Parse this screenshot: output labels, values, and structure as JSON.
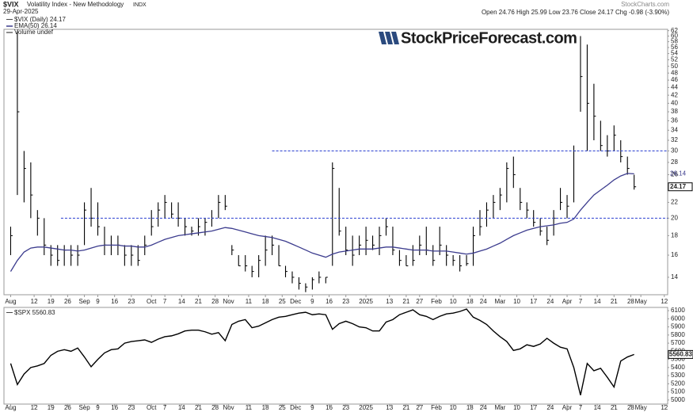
{
  "chart_data": [
    {
      "type": "ohlc",
      "title": "$VIX",
      "subtitle": "Volatility Index - New Methodology",
      "exchange": "INDX",
      "date": "29-Apr-2025",
      "quote": "Open 24.76  High 25.99  Low 23.76  Close 24.17  Chg -0.98 (-3.90%)",
      "source": "StockCharts.com",
      "watermark": "StockPriceForecast.com",
      "legend": [
        "$VIX (Daily) 24.17",
        "EMA(50) 26.14",
        "Volume undef"
      ],
      "color": "#000000",
      "log_scale": true,
      "grid": false,
      "xlim": [
        -2,
        196
      ],
      "xticks": [
        {
          "value": 0,
          "label": "Aug"
        },
        {
          "value": 7,
          "label": "12"
        },
        {
          "value": 12,
          "label": "19"
        },
        {
          "value": 17,
          "label": "26"
        },
        {
          "value": 22,
          "label": "Sep"
        },
        {
          "value": 26,
          "label": "9"
        },
        {
          "value": 31,
          "label": "16"
        },
        {
          "value": 36,
          "label": "23"
        },
        {
          "value": 42,
          "label": "Oct"
        },
        {
          "value": 46,
          "label": "7"
        },
        {
          "value": 51,
          "label": "14"
        },
        {
          "value": 56,
          "label": "21"
        },
        {
          "value": 61,
          "label": "28"
        },
        {
          "value": 65,
          "label": "Nov"
        },
        {
          "value": 71,
          "label": "11"
        },
        {
          "value": 76,
          "label": "18"
        },
        {
          "value": 81,
          "label": "25"
        },
        {
          "value": 85,
          "label": "Dec"
        },
        {
          "value": 90,
          "label": "9"
        },
        {
          "value": 95,
          "label": "16"
        },
        {
          "value": 100,
          "label": "23"
        },
        {
          "value": 106,
          "label": "2025"
        },
        {
          "value": 113,
          "label": "13"
        },
        {
          "value": 118,
          "label": "21"
        },
        {
          "value": 122,
          "label": "27"
        },
        {
          "value": 127,
          "label": "Feb"
        },
        {
          "value": 132,
          "label": "10"
        },
        {
          "value": 137,
          "label": "18"
        },
        {
          "value": 141,
          "label": "24"
        },
        {
          "value": 146,
          "label": "Mar"
        },
        {
          "value": 151,
          "label": "10"
        },
        {
          "value": 156,
          "label": "17"
        },
        {
          "value": 161,
          "label": "24"
        },
        {
          "value": 166,
          "label": "Apr"
        },
        {
          "value": 170,
          "label": "7"
        },
        {
          "value": 175,
          "label": "14"
        },
        {
          "value": 180,
          "label": "21"
        },
        {
          "value": 185,
          "label": "28"
        },
        {
          "value": 188,
          "label": "May"
        },
        {
          "value": 195,
          "label": "12"
        }
      ],
      "ylim": [
        12.6,
        62.5
      ],
      "yticks": [
        14,
        16,
        18,
        20,
        22,
        24,
        26,
        28,
        30,
        32,
        34,
        36,
        38,
        40,
        42,
        44,
        46,
        48,
        50,
        52,
        54,
        56,
        58,
        60,
        62
      ],
      "reference_lines": [
        {
          "value": 30,
          "x_start": 78
        },
        {
          "value": 20,
          "x_start": 15
        }
      ],
      "reference_color": "#2a3fd0",
      "x": [
        0,
        2,
        4,
        6,
        8,
        10,
        12,
        14,
        16,
        18,
        20,
        22,
        24,
        26,
        28,
        30,
        32,
        34,
        36,
        38,
        40,
        42,
        44,
        46,
        48,
        50,
        52,
        54,
        56,
        58,
        60,
        62,
        64,
        66,
        68,
        70,
        72,
        74,
        76,
        78,
        80,
        82,
        84,
        86,
        88,
        90,
        92,
        94,
        96,
        98,
        100,
        102,
        104,
        106,
        108,
        110,
        112,
        114,
        116,
        118,
        120,
        122,
        124,
        126,
        128,
        130,
        132,
        134,
        136,
        138,
        140,
        142,
        144,
        146,
        148,
        150,
        152,
        154,
        156,
        158,
        160,
        162,
        164,
        166,
        168,
        170,
        172,
        174,
        176,
        178,
        180,
        182,
        184,
        186
      ],
      "high": [
        19,
        62,
        30,
        28,
        21,
        20,
        17,
        17,
        17,
        17,
        17,
        22,
        24,
        22,
        19,
        18,
        18,
        17,
        17,
        17,
        18,
        21,
        22,
        23,
        22,
        22,
        20,
        19,
        20,
        20,
        21,
        23,
        23,
        17,
        16,
        16,
        15,
        16,
        18,
        18,
        17,
        15,
        14.5,
        14,
        13.5,
        14,
        14.5,
        14,
        28,
        24,
        19,
        18,
        18,
        19,
        18,
        19,
        20,
        19,
        16.5,
        16,
        17,
        18,
        19,
        17,
        19,
        17,
        16,
        16,
        16,
        19,
        21,
        22,
        23,
        24,
        28,
        29,
        24,
        22,
        21,
        20,
        19,
        21,
        24,
        23,
        31,
        60,
        57,
        45,
        36,
        33,
        35,
        32,
        29,
        25.99
      ],
      "low": [
        16,
        23,
        22,
        20,
        18,
        16,
        15,
        15,
        15,
        15,
        15,
        17,
        19,
        18,
        16,
        16,
        16,
        15,
        15,
        15,
        16,
        18,
        19,
        20,
        20,
        19,
        18,
        18,
        18,
        18,
        19,
        20,
        21,
        16,
        15,
        14.5,
        14,
        14,
        15,
        16,
        15,
        14,
        13.5,
        13,
        12.8,
        13,
        13.5,
        13.5,
        15,
        18,
        16,
        15,
        16,
        16,
        16.5,
        16,
        18,
        16,
        15,
        15,
        15,
        16,
        16,
        15,
        16,
        15,
        15,
        14.5,
        15,
        15,
        18,
        19,
        20,
        21,
        22,
        24,
        21,
        20,
        19,
        18,
        17,
        18,
        21,
        20,
        22,
        38,
        30,
        32,
        30,
        29,
        30,
        28,
        26,
        23.76
      ],
      "close": [
        18,
        38,
        27,
        23,
        20,
        17,
        16,
        15.5,
        16.5,
        16,
        16,
        21,
        20,
        19,
        17,
        17,
        17,
        16,
        16,
        15.5,
        17,
        19,
        21,
        22,
        20.5,
        20,
        19,
        18.5,
        19,
        19.5,
        20,
        22,
        21.5,
        16.5,
        15,
        15,
        14.5,
        15.5,
        16.5,
        17,
        15,
        14.5,
        14,
        13.5,
        13.2,
        13.8,
        14,
        14,
        27,
        18.5,
        16.5,
        16,
        17,
        17.5,
        17,
        18,
        19,
        16.5,
        15.5,
        15,
        15.5,
        17,
        16.5,
        15.5,
        17,
        16,
        15.5,
        15,
        15.2,
        18,
        19,
        21,
        22,
        23,
        27,
        26,
        22,
        21,
        19.5,
        18.5,
        17.5,
        20,
        22,
        21.5,
        30,
        47,
        40,
        37,
        31,
        30,
        33,
        29,
        27,
        24.17
      ],
      "ema": {
        "name": "EMA(50) 26.14",
        "color": "#3c3c8e",
        "values": [
          14.5,
          15.5,
          16.3,
          16.7,
          16.8,
          16.8,
          16.7,
          16.6,
          16.5,
          16.5,
          16.4,
          16.5,
          16.7,
          16.9,
          17.0,
          17.0,
          17.0,
          16.9,
          16.9,
          16.8,
          16.8,
          17.0,
          17.3,
          17.6,
          17.8,
          18.0,
          18.1,
          18.2,
          18.3,
          18.4,
          18.5,
          18.7,
          18.9,
          18.8,
          18.6,
          18.4,
          18.2,
          18.0,
          17.9,
          17.8,
          17.6,
          17.4,
          17.1,
          16.8,
          16.5,
          16.2,
          16.0,
          15.8,
          16.1,
          16.3,
          16.4,
          16.5,
          16.6,
          16.6,
          16.6,
          16.7,
          16.8,
          16.8,
          16.7,
          16.6,
          16.5,
          16.5,
          16.5,
          16.4,
          16.4,
          16.4,
          16.3,
          16.2,
          16.1,
          16.2,
          16.4,
          16.6,
          16.9,
          17.2,
          17.6,
          18.0,
          18.3,
          18.6,
          18.8,
          19.0,
          19.1,
          19.2,
          19.4,
          19.5,
          19.9,
          21.0,
          22.0,
          23.0,
          23.7,
          24.4,
          25.2,
          25.8,
          26.2,
          26.14
        ]
      }
    },
    {
      "type": "line",
      "legend": "$SPX 5560.83",
      "color": "#000000",
      "xlim": [
        -2,
        196
      ],
      "ylim": [
        4950,
        6140
      ],
      "yticks": [
        5000,
        5100,
        5200,
        5300,
        5400,
        5500,
        5600,
        5700,
        5800,
        5900,
        6000,
        6100
      ],
      "x": [
        0,
        2,
        4,
        6,
        8,
        10,
        12,
        14,
        16,
        18,
        20,
        22,
        24,
        26,
        28,
        30,
        32,
        34,
        36,
        38,
        40,
        42,
        44,
        46,
        48,
        50,
        52,
        54,
        56,
        58,
        60,
        62,
        64,
        66,
        68,
        70,
        72,
        74,
        76,
        78,
        80,
        82,
        84,
        86,
        88,
        90,
        92,
        94,
        96,
        98,
        100,
        102,
        104,
        106,
        108,
        110,
        112,
        114,
        116,
        118,
        120,
        122,
        124,
        126,
        128,
        130,
        132,
        134,
        136,
        138,
        140,
        142,
        144,
        146,
        148,
        150,
        152,
        154,
        156,
        158,
        160,
        162,
        164,
        166,
        168,
        170,
        172,
        174,
        176,
        178,
        180,
        182,
        184,
        186
      ],
      "values": [
        5450,
        5190,
        5320,
        5400,
        5420,
        5450,
        5550,
        5600,
        5620,
        5600,
        5640,
        5530,
        5410,
        5500,
        5580,
        5620,
        5630,
        5700,
        5720,
        5730,
        5740,
        5710,
        5750,
        5780,
        5790,
        5815,
        5850,
        5860,
        5860,
        5840,
        5810,
        5830,
        5730,
        5930,
        5970,
        5990,
        5890,
        5910,
        5950,
        5990,
        6020,
        6030,
        6050,
        6070,
        6080,
        6050,
        6060,
        6050,
        5870,
        5940,
        5970,
        5940,
        5900,
        5890,
        5850,
        5850,
        5960,
        5990,
        6050,
        6080,
        6110,
        6050,
        6030,
        5990,
        6030,
        6060,
        6070,
        6090,
        6120,
        6020,
        5980,
        5930,
        5850,
        5780,
        5720,
        5610,
        5630,
        5680,
        5660,
        5690,
        5760,
        5700,
        5650,
        5630,
        5400,
        5060,
        5450,
        5360,
        5390,
        5280,
        5160,
        5480,
        5530,
        5560.83
      ]
    }
  ]
}
